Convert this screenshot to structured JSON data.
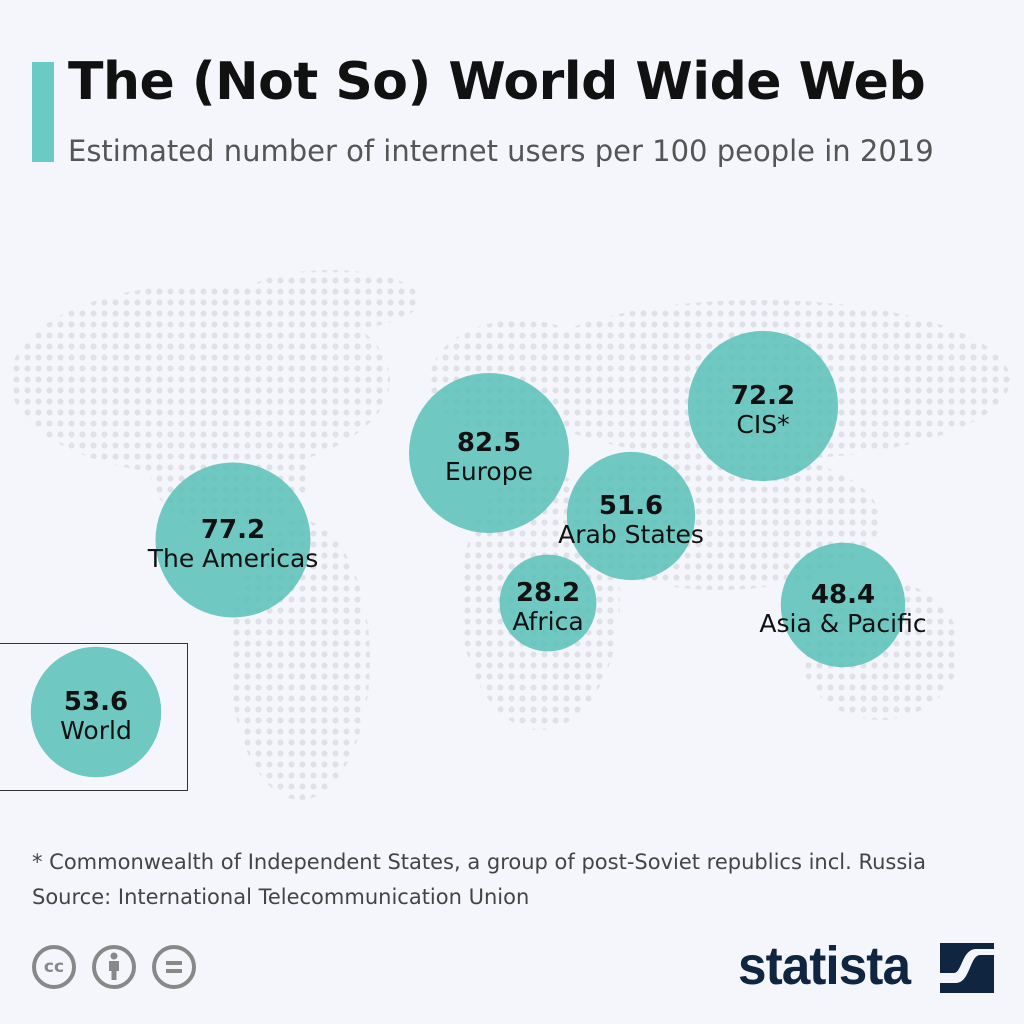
{
  "header": {
    "title": "The (Not So) World Wide Web",
    "subtitle": "Estimated number of internet users per 100 people in 2019"
  },
  "chart_data": {
    "type": "bubble-map",
    "title": "The (Not So) World Wide Web",
    "subtitle": "Estimated number of internet users per 100 people in 2019",
    "categories": [
      "World",
      "The Americas",
      "Europe",
      "Arab States",
      "Africa",
      "CIS*",
      "Asia & Pacific"
    ],
    "values": [
      53.6,
      77.2,
      82.5,
      51.6,
      28.2,
      72.2,
      48.4
    ],
    "value_labels": [
      "53.6",
      "77.2",
      "82.5",
      "51.6",
      "28.2",
      "72.2",
      "48.4"
    ],
    "unit": "internet users per 100 people",
    "bubble_color": "#5cc2ba"
  },
  "footer": {
    "note": "* Commonwealth of Independent States, a group of post-Soviet republics incl. Russia",
    "source": "Source: International Telecommunication Union",
    "license_icons": [
      "cc-icon",
      "attribution-icon",
      "no-derivatives-icon"
    ],
    "cc_text": "cc",
    "logo": "statista"
  },
  "colors": {
    "accent": "#6acbc4",
    "background": "#f4f6fb",
    "logo": "#0f2540"
  }
}
